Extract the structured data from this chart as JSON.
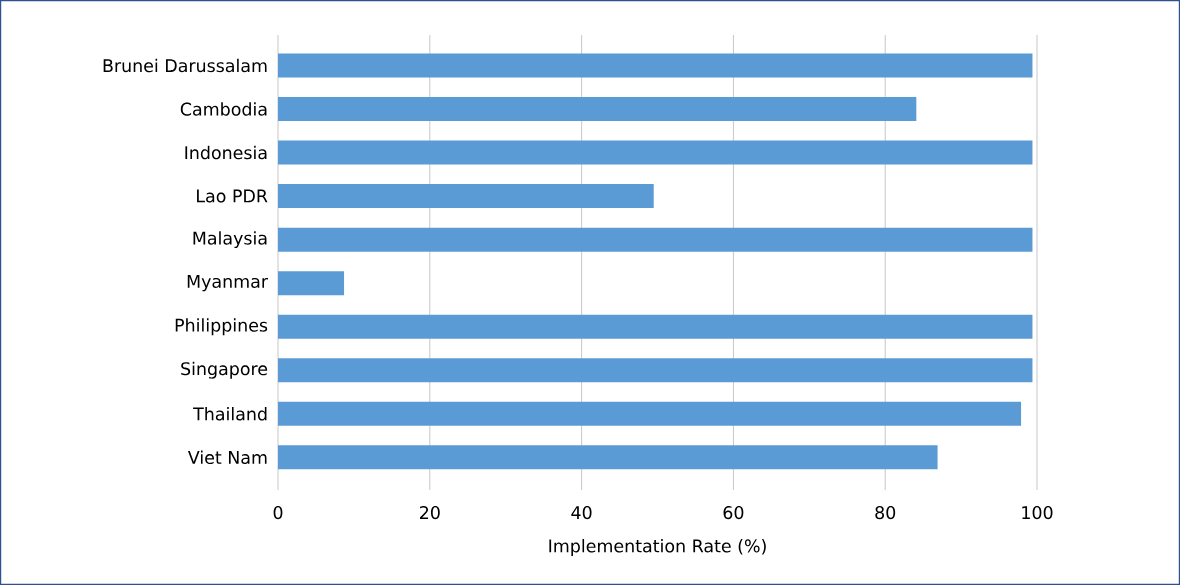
{
  "chart_data": {
    "type": "bar",
    "orientation": "horizontal",
    "xlabel": "Implementation Rate (%)",
    "categories": [
      "Brunei Darussalam",
      "Cambodia",
      "Indonesia",
      "Lao PDR",
      "Malaysia",
      "Myanmar",
      "Philippines",
      "Singapore",
      "Thailand",
      "Viet Nam"
    ],
    "values": [
      99.4,
      84.1,
      99.4,
      49.5,
      99.4,
      8.7,
      99.4,
      99.4,
      97.9,
      86.9
    ],
    "color": "#5b9bd5",
    "xlim": [
      0,
      100
    ],
    "xticks": [
      0,
      20,
      40,
      60,
      80,
      100
    ],
    "grid": "x"
  }
}
